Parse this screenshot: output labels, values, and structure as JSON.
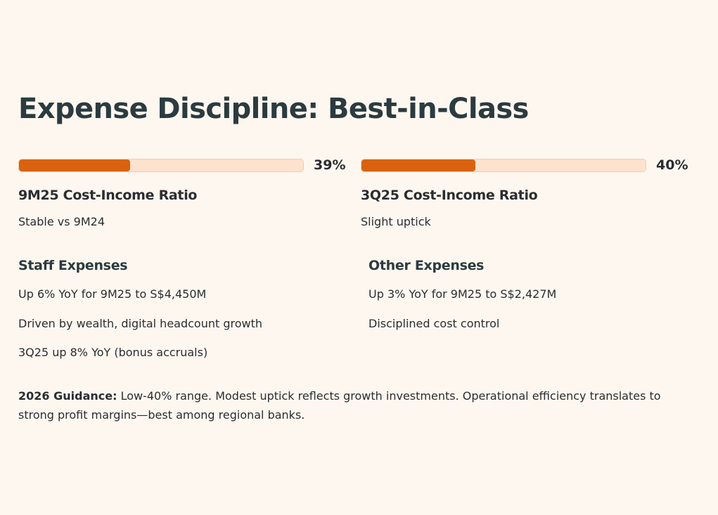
{
  "title": "Expense Discipline: Best-in-Class",
  "metrics": [
    {
      "value_label": "39%",
      "value": 0.39,
      "label": "9M25 Cost-Income Ratio",
      "subtitle": "Stable vs 9M24"
    },
    {
      "value_label": "40%",
      "value": 0.4,
      "label": "3Q25 Cost-Income Ratio",
      "subtitle": "Slight uptick"
    }
  ],
  "sections": [
    {
      "title": "Staff Expenses",
      "items": [
        "Up 6% YoY for 9M25 to S$4,450M",
        "Driven by wealth, digital headcount growth",
        "3Q25 up 8% YoY (bonus accruals)"
      ]
    },
    {
      "title": "Other Expenses",
      "items": [
        "Up 3% YoY for 9M25 to S$2,427M",
        "Disciplined cost control"
      ]
    }
  ],
  "guidance": {
    "label": "2026 Guidance:",
    "text": " Low-40% range. Modest uptick reflects growth investments. Operational efficiency translates to strong profit margins—best among regional banks."
  },
  "colors": {
    "background": "#fdf7f0",
    "bar_fill": "#d9620f",
    "bar_track": "#fde2cd",
    "heading": "#2b3b3f"
  }
}
